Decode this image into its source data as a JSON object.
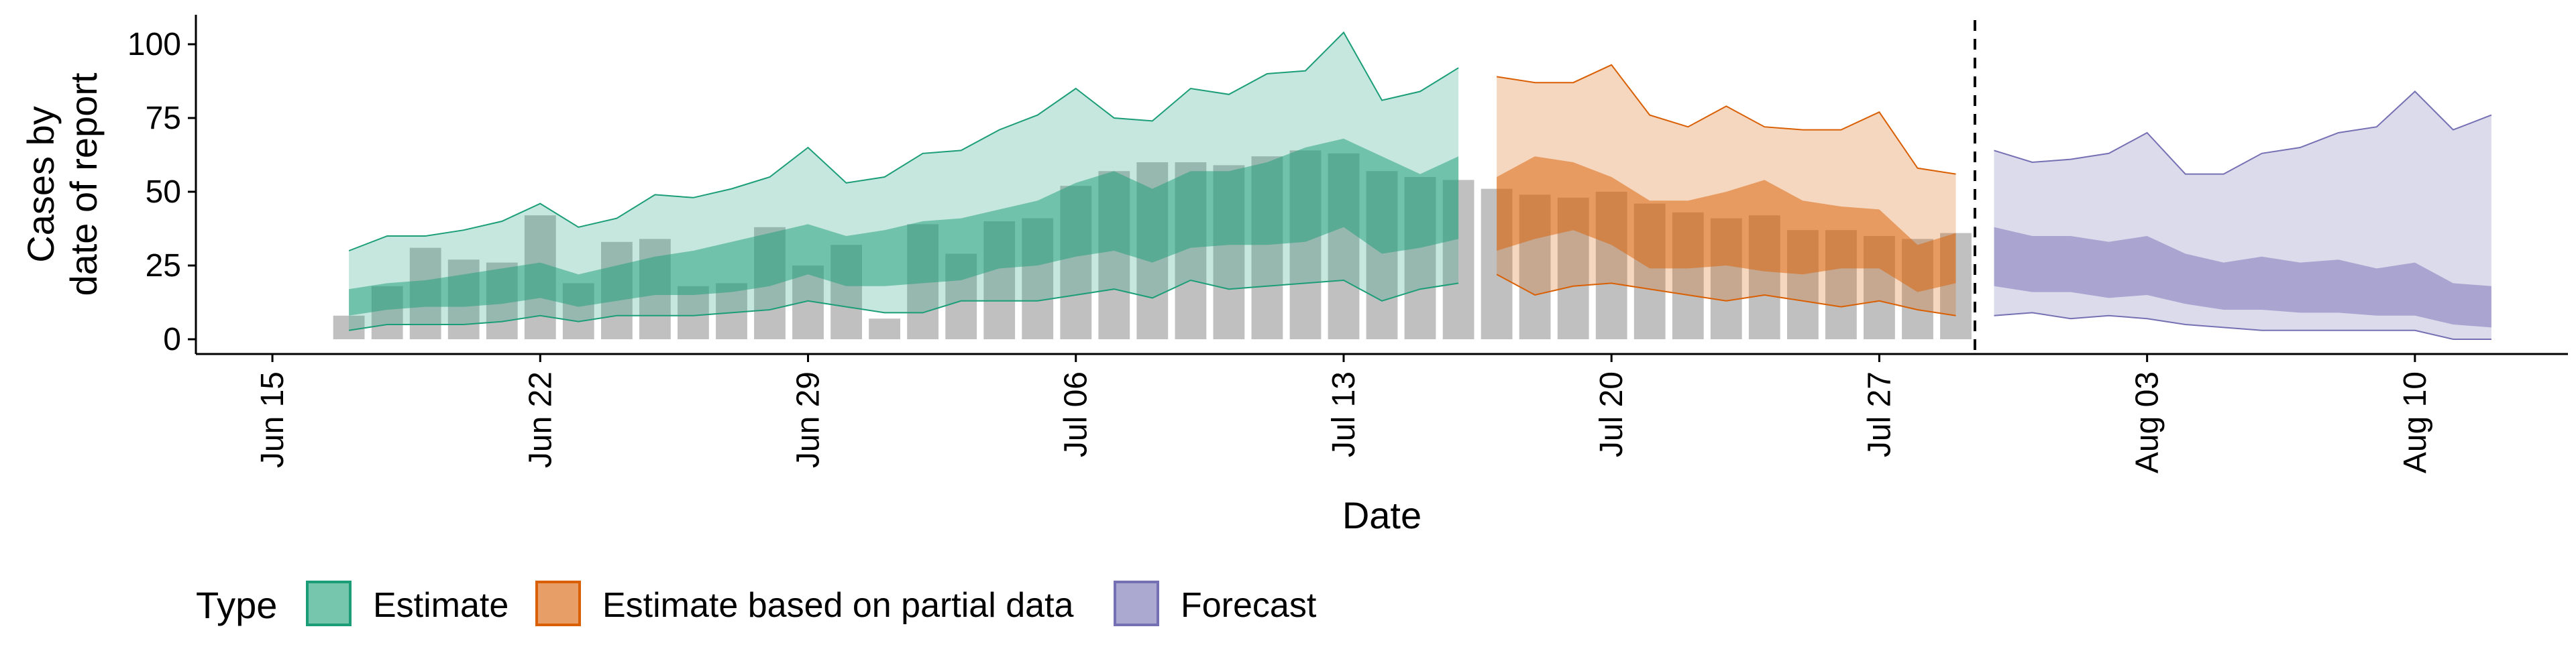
{
  "chart_data": {
    "type": "area",
    "title": "",
    "xlabel": "Date",
    "ylabel": [
      "Cases by",
      "date of report"
    ],
    "xlim": [
      "2020-06-13",
      "2020-08-14"
    ],
    "ylim": [
      -5,
      110
    ],
    "grid": false,
    "legend_position": "bottom",
    "x_ticks": [
      {
        "date": "2020-06-15",
        "label": "Jun 15"
      },
      {
        "date": "2020-06-22",
        "label": "Jun 22"
      },
      {
        "date": "2020-06-29",
        "label": "Jun 29"
      },
      {
        "date": "2020-07-06",
        "label": "Jul 06"
      },
      {
        "date": "2020-07-13",
        "label": "Jul 13"
      },
      {
        "date": "2020-07-20",
        "label": "Jul 20"
      },
      {
        "date": "2020-07-27",
        "label": "Jul 27"
      },
      {
        "date": "2020-08-03",
        "label": "Aug 03"
      },
      {
        "date": "2020-08-10",
        "label": "Aug 10"
      }
    ],
    "y_ticks": [
      {
        "value": 0,
        "label": "0"
      },
      {
        "value": 25,
        "label": "25"
      },
      {
        "value": 50,
        "label": "50"
      },
      {
        "value": 75,
        "label": "75"
      },
      {
        "value": 100,
        "label": "100"
      }
    ],
    "forecast_cutoff": "2020-07-29",
    "reported_cases": {
      "color": "#bdbdbd",
      "dates": [
        "2020-06-17",
        "2020-06-18",
        "2020-06-19",
        "2020-06-20",
        "2020-06-21",
        "2020-06-22",
        "2020-06-23",
        "2020-06-24",
        "2020-06-25",
        "2020-06-26",
        "2020-06-27",
        "2020-06-28",
        "2020-06-29",
        "2020-06-30",
        "2020-07-01",
        "2020-07-02",
        "2020-07-03",
        "2020-07-04",
        "2020-07-05",
        "2020-07-06",
        "2020-07-07",
        "2020-07-08",
        "2020-07-09",
        "2020-07-10",
        "2020-07-11",
        "2020-07-12",
        "2020-07-13",
        "2020-07-14",
        "2020-07-15",
        "2020-07-16",
        "2020-07-17",
        "2020-07-18",
        "2020-07-19",
        "2020-07-20",
        "2020-07-21",
        "2020-07-22",
        "2020-07-23",
        "2020-07-24",
        "2020-07-25",
        "2020-07-26",
        "2020-07-27",
        "2020-07-28",
        "2020-07-29"
      ],
      "values": [
        8,
        18,
        31,
        27,
        26,
        42,
        19,
        33,
        34,
        18,
        19,
        38,
        25,
        32,
        7,
        39,
        29,
        40,
        41,
        52,
        57,
        60,
        60,
        59,
        62,
        64,
        63,
        57,
        55,
        54,
        51,
        49,
        48,
        50,
        46,
        43,
        41,
        42,
        37,
        37,
        35,
        34,
        36
      ]
    },
    "series": [
      {
        "name": "Estimate",
        "color": "#1b9e77",
        "dates": [
          "2020-06-17",
          "2020-06-18",
          "2020-06-19",
          "2020-06-20",
          "2020-06-21",
          "2020-06-22",
          "2020-06-23",
          "2020-06-24",
          "2020-06-25",
          "2020-06-26",
          "2020-06-27",
          "2020-06-28",
          "2020-06-29",
          "2020-06-30",
          "2020-07-01",
          "2020-07-02",
          "2020-07-03",
          "2020-07-04",
          "2020-07-05",
          "2020-07-06",
          "2020-07-07",
          "2020-07-08",
          "2020-07-09",
          "2020-07-10",
          "2020-07-11",
          "2020-07-12",
          "2020-07-13",
          "2020-07-14",
          "2020-07-15",
          "2020-07-16"
        ],
        "outer_upper": [
          30,
          35,
          35,
          37,
          40,
          46,
          38,
          41,
          49,
          48,
          51,
          55,
          65,
          53,
          55,
          63,
          64,
          71,
          76,
          85,
          75,
          74,
          85,
          83,
          90,
          91,
          104,
          81,
          84,
          92
        ],
        "outer_lower": [
          3,
          5,
          5,
          5,
          6,
          8,
          6,
          8,
          8,
          8,
          9,
          10,
          13,
          11,
          9,
          9,
          13,
          13,
          13,
          15,
          17,
          14,
          20,
          17,
          18,
          19,
          20,
          13,
          17,
          19
        ],
        "inner_upper": [
          17,
          19,
          20,
          22,
          24,
          26,
          22,
          25,
          28,
          30,
          33,
          36,
          39,
          35,
          37,
          40,
          41,
          44,
          47,
          53,
          57,
          51,
          57,
          57,
          60,
          65,
          68,
          62,
          56,
          62
        ],
        "inner_lower": [
          8,
          10,
          11,
          11,
          12,
          14,
          11,
          13,
          15,
          15,
          16,
          18,
          22,
          18,
          18,
          19,
          20,
          24,
          25,
          28,
          30,
          26,
          31,
          32,
          32,
          33,
          38,
          29,
          31,
          34
        ]
      },
      {
        "name": "Estimate based on partial data",
        "color": "#d95f02",
        "dates": [
          "2020-07-17",
          "2020-07-18",
          "2020-07-19",
          "2020-07-20",
          "2020-07-21",
          "2020-07-22",
          "2020-07-23",
          "2020-07-24",
          "2020-07-25",
          "2020-07-26",
          "2020-07-27",
          "2020-07-28",
          "2020-07-29"
        ],
        "outer_upper": [
          89,
          87,
          87,
          93,
          76,
          72,
          79,
          72,
          71,
          71,
          77,
          58,
          56
        ],
        "outer_lower": [
          22,
          15,
          18,
          19,
          17,
          15,
          13,
          15,
          13,
          11,
          13,
          10,
          8
        ],
        "inner_upper": [
          55,
          62,
          60,
          55,
          47,
          47,
          50,
          54,
          47,
          45,
          44,
          32,
          36
        ],
        "inner_lower": [
          30,
          34,
          37,
          32,
          24,
          24,
          25,
          23,
          22,
          24,
          24,
          16,
          19
        ]
      },
      {
        "name": "Forecast",
        "color": "#7570b3",
        "dates": [
          "2020-07-30",
          "2020-07-31",
          "2020-08-01",
          "2020-08-02",
          "2020-08-03",
          "2020-08-04",
          "2020-08-05",
          "2020-08-06",
          "2020-08-07",
          "2020-08-08",
          "2020-08-09",
          "2020-08-10",
          "2020-08-11",
          "2020-08-12"
        ],
        "outer_upper": [
          64,
          60,
          61,
          63,
          70,
          56,
          56,
          63,
          65,
          70,
          72,
          84,
          71,
          76
        ],
        "outer_lower": [
          8,
          9,
          7,
          8,
          7,
          5,
          4,
          3,
          3,
          3,
          3,
          3,
          0,
          0
        ],
        "inner_upper": [
          38,
          35,
          35,
          33,
          35,
          29,
          26,
          28,
          26,
          27,
          24,
          26,
          19,
          18
        ],
        "inner_lower": [
          18,
          16,
          16,
          14,
          15,
          12,
          10,
          10,
          9,
          9,
          8,
          8,
          5,
          4
        ]
      }
    ],
    "legend": {
      "title": "Type",
      "entries": [
        {
          "label": "Estimate",
          "color": "#1b9e77"
        },
        {
          "label": "Estimate based on partial data",
          "color": "#d95f02"
        },
        {
          "label": "Forecast",
          "color": "#7570b3"
        }
      ]
    }
  }
}
